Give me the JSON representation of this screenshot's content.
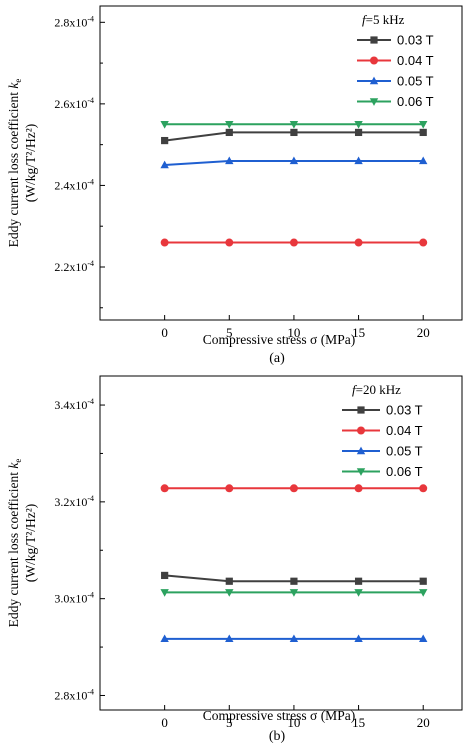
{
  "chart_data": [
    {
      "type": "line",
      "panel_label": "(a)",
      "xlabel": "Compressive stress σ (MPa)",
      "ylabel_line1": "Eddy current loss coefficient ke",
      "ylabel_line2": "(W/kg/T²/Hz²)",
      "x": [
        0,
        5,
        10,
        15,
        20
      ],
      "x_ticks": [
        "0",
        "5",
        "10",
        "15",
        "20"
      ],
      "xlim": [
        -5,
        23
      ],
      "ylim": [
        0.000207,
        0.000284
      ],
      "y_ticks": [
        {
          "value": 0.00022,
          "base": "2.2x10",
          "exp": "-4"
        },
        {
          "value": 0.00024,
          "base": "2.4x10",
          "exp": "-4"
        },
        {
          "value": 0.00026,
          "base": "2.6x10",
          "exp": "-4"
        },
        {
          "value": 0.00028,
          "base": "2.8x10",
          "exp": "-4"
        }
      ],
      "legend_title": "f=5 kHz",
      "legend_position": "top-right",
      "series": [
        {
          "name": "0.03 T",
          "color": "#404040",
          "marker": "square",
          "values": [
            0.000251,
            0.000253,
            0.000253,
            0.000253,
            0.000253
          ]
        },
        {
          "name": "0.04 T",
          "color": "#e8373c",
          "marker": "circle",
          "values": [
            0.000226,
            0.000226,
            0.000226,
            0.000226,
            0.000226
          ]
        },
        {
          "name": "0.05 T",
          "color": "#1f5fd1",
          "marker": "triangle-up",
          "values": [
            0.000245,
            0.000246,
            0.000246,
            0.000246,
            0.000246
          ]
        },
        {
          "name": "0.06 T",
          "color": "#2ca25f",
          "marker": "triangle-down",
          "values": [
            0.000255,
            0.000255,
            0.000255,
            0.000255,
            0.000255
          ]
        }
      ]
    },
    {
      "type": "line",
      "panel_label": "(b)",
      "xlabel": "Compressive stress σ (MPa)",
      "ylabel_line1": "Eddy current loss coefficient ke",
      "ylabel_line2": "(W/kg/T²/Hz²)",
      "x": [
        0,
        5,
        10,
        15,
        20
      ],
      "x_ticks": [
        "0",
        "5",
        "10",
        "15",
        "20"
      ],
      "xlim": [
        -5,
        23
      ],
      "ylim": [
        0.000277,
        0.000346
      ],
      "y_ticks": [
        {
          "value": 0.00028,
          "base": "2.8x10",
          "exp": "-4"
        },
        {
          "value": 0.0003,
          "base": "3.0x10",
          "exp": "-4"
        },
        {
          "value": 0.00032,
          "base": "3.2x10",
          "exp": "-4"
        },
        {
          "value": 0.00034,
          "base": "3.4x10",
          "exp": "-4"
        }
      ],
      "legend_title": "f=20 kHz",
      "legend_position": "top-right",
      "series": [
        {
          "name": "0.03 T",
          "color": "#404040",
          "marker": "square",
          "values": [
            0.0003048,
            0.0003036,
            0.0003036,
            0.0003036,
            0.0003036
          ]
        },
        {
          "name": "0.04 T",
          "color": "#e8373c",
          "marker": "circle",
          "values": [
            0.0003228,
            0.0003228,
            0.0003228,
            0.0003228,
            0.0003228
          ]
        },
        {
          "name": "0.05 T",
          "color": "#1f5fd1",
          "marker": "triangle-up",
          "values": [
            0.0002917,
            0.0002917,
            0.0002917,
            0.0002917,
            0.0002917
          ]
        },
        {
          "name": "0.06 T",
          "color": "#2ca25f",
          "marker": "triangle-down",
          "values": [
            0.0003013,
            0.0003013,
            0.0003013,
            0.0003013,
            0.0003013
          ]
        }
      ]
    }
  ]
}
